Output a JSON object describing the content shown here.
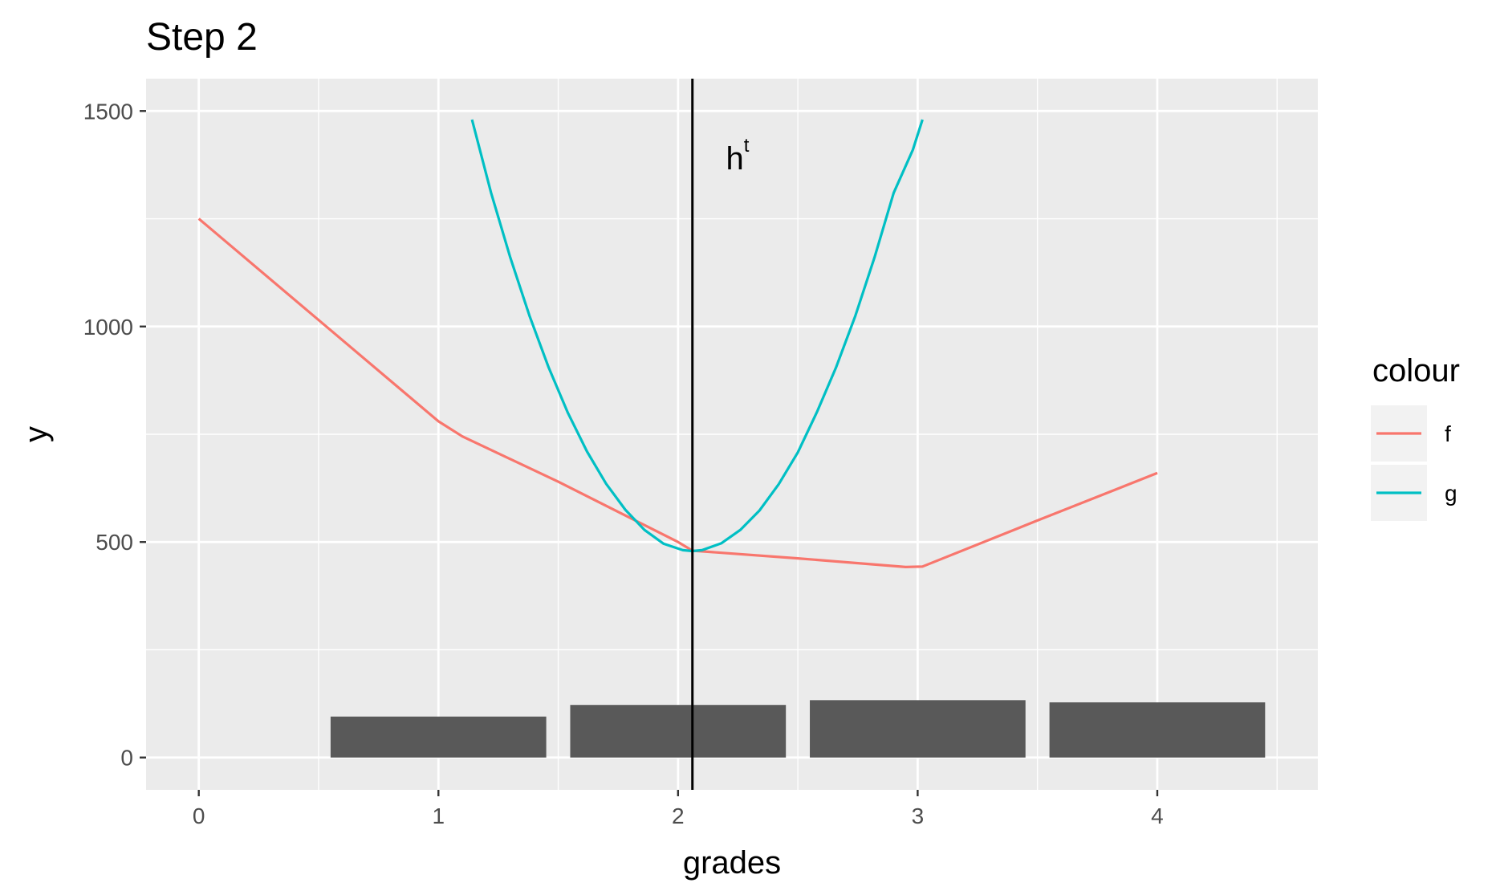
{
  "chart_data": {
    "type": "line",
    "title": "Step 2",
    "xlabel": "grades",
    "ylabel": "y",
    "xlim": [
      -0.22,
      4.67
    ],
    "ylim": [
      -75,
      1575
    ],
    "x_ticks": [
      0,
      1,
      2,
      3,
      4
    ],
    "y_ticks": [
      0,
      500,
      1000,
      1500
    ],
    "grid": true,
    "legend": {
      "title": "colour",
      "position": "right",
      "entries": [
        {
          "label": "f",
          "color": "#F8766D"
        },
        {
          "label": "g",
          "color": "#00BFC4"
        }
      ]
    },
    "series": [
      {
        "name": "f",
        "color": "#F8766D",
        "x": [
          0,
          0.5,
          1,
          1.1,
          1.5,
          2,
          2.06,
          2.5,
          2.95,
          3.02,
          3.5,
          4
        ],
        "y": [
          1250,
          1015,
          780,
          745,
          640,
          500,
          480,
          462,
          442,
          443,
          550,
          660
        ]
      },
      {
        "name": "g",
        "color": "#00BFC4",
        "x": [
          1.14,
          1.22,
          1.3,
          1.38,
          1.46,
          1.54,
          1.62,
          1.7,
          1.78,
          1.86,
          1.94,
          2.02,
          2.06,
          2.1,
          2.18,
          2.26,
          2.34,
          2.42,
          2.5,
          2.58,
          2.66,
          2.74,
          2.82,
          2.9,
          2.98,
          3.02
        ],
        "y": [
          1480,
          1310,
          1160,
          1025,
          905,
          800,
          710,
          635,
          575,
          528,
          496,
          481,
          479,
          481,
          497,
          528,
          573,
          634,
          708,
          802,
          906,
          1025,
          1160,
          1310,
          1410,
          1480
        ]
      }
    ],
    "bars": {
      "color": "#595959",
      "x": [
        1,
        2,
        3,
        4
      ],
      "values": [
        95,
        122,
        133,
        128
      ],
      "width": 0.9
    },
    "vline": {
      "x": 2.06,
      "color": "#000000",
      "label": "h",
      "label_superscript": "t",
      "label_x": 2.2,
      "label_y": 1365
    }
  }
}
